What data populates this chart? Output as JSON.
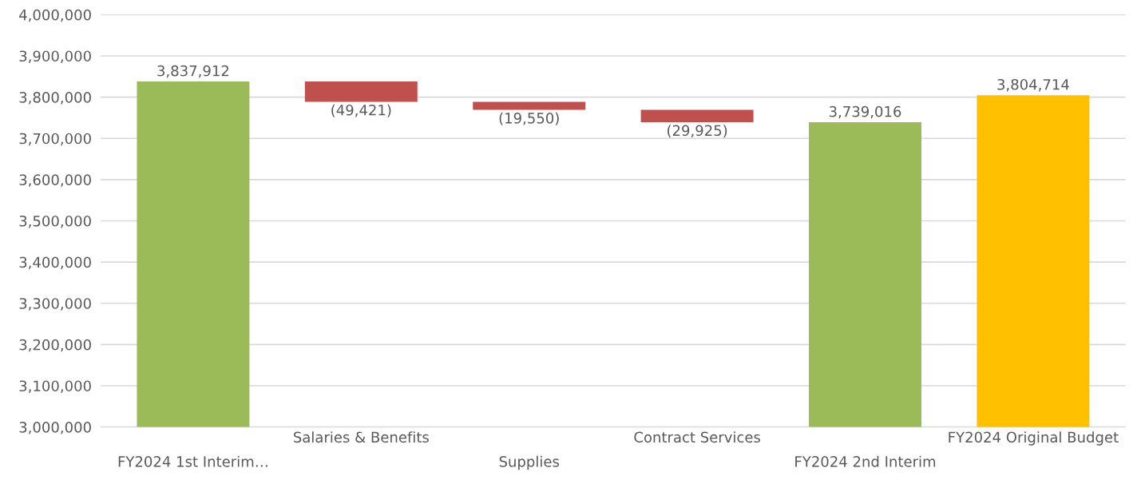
{
  "chart_data": {
    "type": "bar",
    "categories": [
      "FY2024 1st Interim…",
      "Salaries & Benefits",
      "Supplies",
      "Contract Services",
      "FY2024 2nd Interim",
      "FY2024 Original Budget"
    ],
    "values": [
      3837912,
      -49421,
      -19550,
      -29925,
      3739016,
      3804714
    ],
    "base": [
      0,
      3837912,
      3788491,
      3768941,
      0,
      0
    ],
    "colors": [
      "#9bbb59",
      "#c0504d",
      "#c0504d",
      "#c0504d",
      "#9bbb59",
      "#ffc000"
    ],
    "value_labels": [
      "3,837,912",
      "(49,421)",
      "(19,550)",
      "(29,925)",
      "3,739,016",
      "3,804,714"
    ],
    "ylim": [
      3000000,
      4000000
    ],
    "yticks": [
      {
        "value": 3000000,
        "label": "3,000,000"
      },
      {
        "value": 3100000,
        "label": "3,100,000"
      },
      {
        "value": 3200000,
        "label": "3,200,000"
      },
      {
        "value": 3300000,
        "label": "3,300,000"
      },
      {
        "value": 3400000,
        "label": "3,400,000"
      },
      {
        "value": 3500000,
        "label": "3,500,000"
      },
      {
        "value": 3600000,
        "label": "3,600,000"
      },
      {
        "value": 3700000,
        "label": "3,700,000"
      },
      {
        "value": 3800000,
        "label": "3,800,000"
      },
      {
        "value": 3900000,
        "label": "3,900,000"
      },
      {
        "value": 4000000,
        "label": "4,000,000"
      }
    ],
    "grid": "y"
  }
}
